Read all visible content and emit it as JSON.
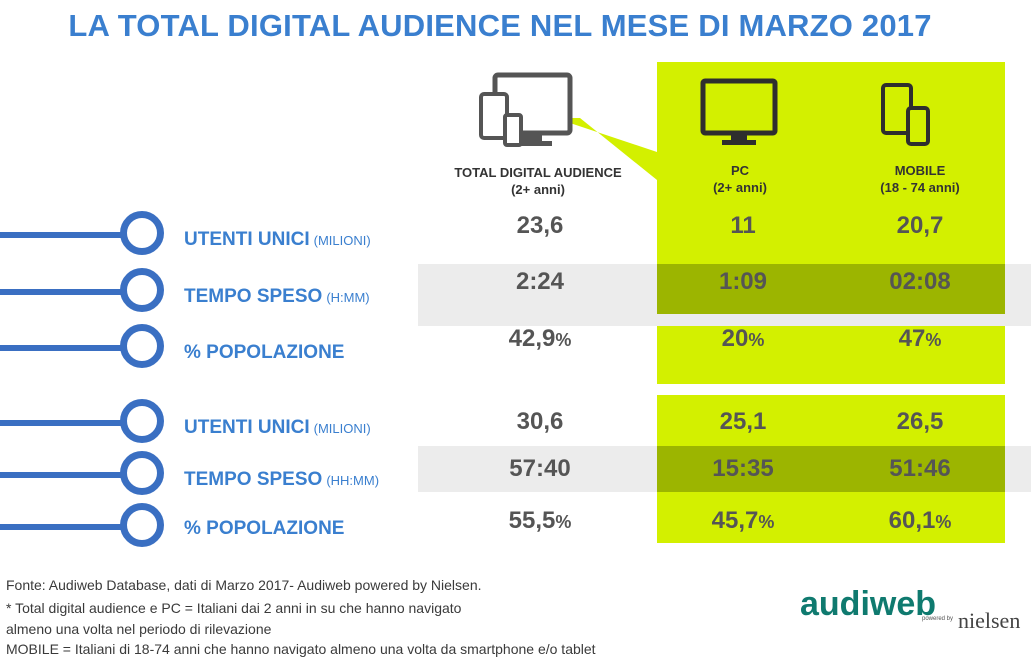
{
  "title": "LA TOTAL DIGITAL AUDIENCE NEL MESE DI MARZO 2017",
  "chart_data": {
    "type": "table",
    "columns": [
      {
        "label": "TOTAL DIGITAL AUDIENCE",
        "sub": "(2+ anni)"
      },
      {
        "label": "PC",
        "sub": "(2+ anni)"
      },
      {
        "label": "MOBILE",
        "sub": "(18 - 74 anni)"
      }
    ],
    "groups": [
      {
        "rows": [
          {
            "label": "UTENTI UNICI",
            "unit": "(MILIONI)",
            "values": [
              "23,6",
              "11",
              "20,7"
            ],
            "suffix": ""
          },
          {
            "label": "TEMPO SPESO",
            "unit": "(H:MM)",
            "values": [
              "2:24",
              "1:09",
              "02:08"
            ],
            "suffix": ""
          },
          {
            "label": "% POPOLAZIONE",
            "unit": "",
            "values": [
              "42,9",
              "20",
              "47"
            ],
            "suffix": "%"
          }
        ]
      },
      {
        "rows": [
          {
            "label": "UTENTI UNICI",
            "unit": "(MILIONI)",
            "values": [
              "30,6",
              "25,1",
              "26,5"
            ],
            "suffix": ""
          },
          {
            "label": "TEMPO SPESO",
            "unit": "(HH:MM)",
            "values": [
              "57:40",
              "15:35",
              "51:46"
            ],
            "suffix": ""
          },
          {
            "label": "% POPOLAZIONE",
            "unit": "",
            "values": [
              "55,5",
              "45,7",
              "60,1"
            ],
            "suffix": "%"
          }
        ]
      }
    ]
  },
  "footnotes": [
    "Fonte: Audiweb Database, dati di Marzo 2017- Audiweb powered by Nielsen.",
    "* Total digital audience e PC = Italiani dai 2 anni in su che hanno navigato",
    "almeno una volta nel periodo di rilevazione",
    "MOBILE = Italiani di 18-74 anni che hanno navigato almeno una volta da smartphone e/o tablet"
  ],
  "logo": {
    "brand": "audiweb",
    "powered": "powered by",
    "partner": "nielsen"
  },
  "colors": {
    "accent_blue": "#3a7fcf",
    "lime": "#d3f000",
    "band": "#ececec",
    "band_on_lime": "#9cb500"
  },
  "icons": [
    "devices-icon",
    "monitor-icon",
    "tablet-phone-icon"
  ]
}
